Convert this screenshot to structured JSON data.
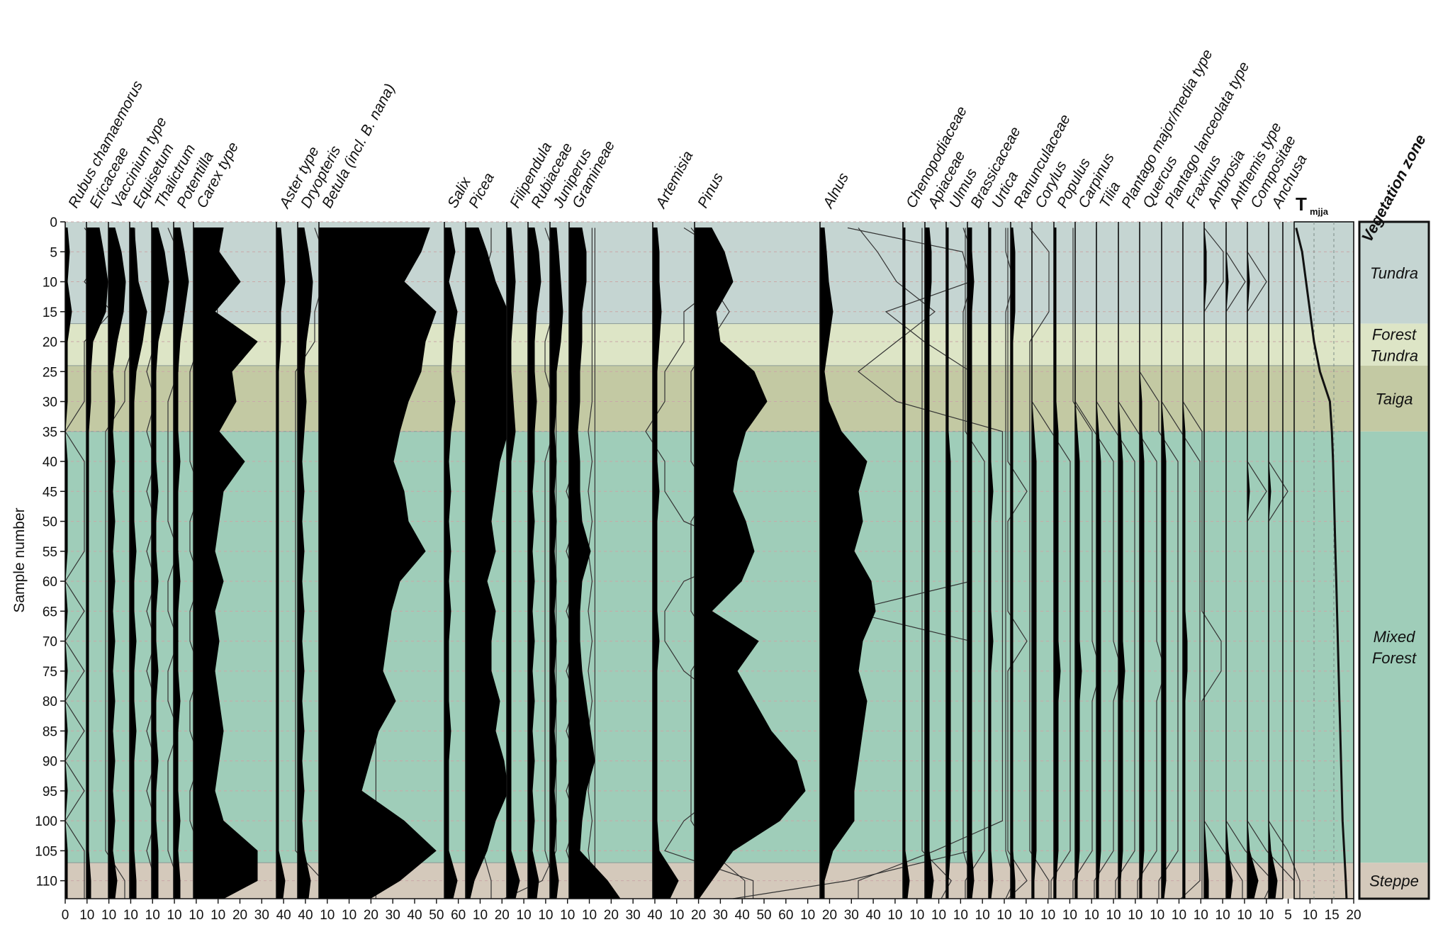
{
  "chart_data": {
    "type": "area",
    "ylabel": "Sample number",
    "ylim": [
      0,
      113
    ],
    "y_ticks": [
      0,
      5,
      10,
      15,
      20,
      25,
      30,
      35,
      40,
      45,
      50,
      55,
      60,
      65,
      70,
      75,
      80,
      85,
      90,
      95,
      100,
      105,
      110
    ],
    "samples": [
      1,
      5,
      10,
      15,
      20,
      25,
      30,
      35,
      40,
      45,
      50,
      55,
      60,
      65,
      70,
      75,
      80,
      85,
      90,
      95,
      100,
      105,
      110,
      113
    ],
    "zones_header": "Vegetation zone",
    "zones": [
      {
        "name": "Tundra",
        "lines": [
          "Tundra"
        ],
        "from": 0,
        "to": 17,
        "color": "#c5d5d2"
      },
      {
        "name": "Forest Tundra",
        "lines": [
          "Forest",
          "Tundra"
        ],
        "from": 17,
        "to": 24,
        "color": "#dde5c6"
      },
      {
        "name": "Taiga",
        "lines": [
          "Taiga"
        ],
        "from": 24,
        "to": 35,
        "color": "#c3c9a3"
      },
      {
        "name": "Mixed Forest",
        "lines": [
          "Mixed",
          "Forest"
        ],
        "from": 35,
        "to": 107,
        "color": "#9fcdb9"
      },
      {
        "name": "Steppe",
        "lines": [
          "Steppe"
        ],
        "from": 107,
        "to": 113,
        "color": "#d4c9bb"
      }
    ],
    "taxa": [
      {
        "name": "Rubus chamaemorus",
        "values": [
          1,
          2,
          1,
          3,
          1,
          1,
          1,
          0,
          1,
          1,
          1,
          1,
          0,
          1,
          0,
          1,
          0,
          1,
          0,
          1,
          0,
          1,
          1,
          1
        ]
      },
      {
        "name": "Ericaceae",
        "values": [
          6,
          8,
          10,
          9,
          3,
          2,
          2,
          1,
          1,
          1,
          1,
          1,
          1,
          1,
          1,
          1,
          1,
          1,
          1,
          1,
          1,
          1,
          2,
          2
        ]
      },
      {
        "name": "Vaccinium type",
        "values": [
          3,
          6,
          8,
          7,
          4,
          2,
          3,
          2,
          3,
          2,
          3,
          2,
          3,
          2,
          3,
          2,
          3,
          2,
          3,
          2,
          3,
          2,
          4,
          3
        ]
      },
      {
        "name": "Equisetum",
        "values": [
          2,
          3,
          4,
          8,
          6,
          3,
          2,
          2,
          2,
          2,
          2,
          3,
          2,
          2,
          3,
          2,
          2,
          3,
          2,
          2,
          2,
          2,
          3,
          3
        ]
      },
      {
        "name": "Thalictrum",
        "values": [
          3,
          6,
          8,
          6,
          3,
          2,
          2,
          2,
          2,
          3,
          2,
          2,
          3,
          2,
          2,
          3,
          2,
          2,
          3,
          2,
          2,
          3,
          3,
          3
        ]
      },
      {
        "name": "Potentilla",
        "values": [
          3,
          5,
          7,
          5,
          3,
          2,
          2,
          2,
          3,
          2,
          2,
          2,
          3,
          2,
          2,
          2,
          3,
          2,
          2,
          2,
          3,
          2,
          3,
          3
        ]
      },
      {
        "name": "Carex type",
        "values": [
          14,
          12,
          22,
          10,
          30,
          18,
          20,
          12,
          24,
          14,
          12,
          10,
          14,
          10,
          12,
          10,
          12,
          14,
          12,
          10,
          14,
          30,
          30,
          14
        ]
      },
      {
        "name": "Aster type",
        "values": [
          2,
          3,
          4,
          2,
          2,
          1,
          1,
          1,
          1,
          1,
          1,
          1,
          1,
          1,
          1,
          1,
          1,
          1,
          1,
          1,
          1,
          1,
          4,
          3
        ]
      },
      {
        "name": "Dryopteris",
        "values": [
          3,
          5,
          7,
          6,
          4,
          3,
          4,
          3,
          2,
          3,
          2,
          3,
          2,
          3,
          2,
          3,
          2,
          3,
          2,
          3,
          2,
          3,
          6,
          5
        ]
      },
      {
        "name": "Betula (incl. B. nana)",
        "values": [
          52,
          48,
          40,
          55,
          50,
          48,
          42,
          38,
          35,
          40,
          42,
          50,
          38,
          34,
          32,
          30,
          36,
          28,
          24,
          20,
          40,
          55,
          38,
          24
        ]
      },
      {
        "name": "Salix",
        "values": [
          3,
          5,
          2,
          6,
          4,
          3,
          5,
          3,
          2,
          3,
          2,
          3,
          2,
          3,
          2,
          2,
          2,
          3,
          2,
          2,
          2,
          2,
          6,
          4
        ]
      },
      {
        "name": "Picea",
        "values": [
          6,
          10,
          14,
          22,
          26,
          32,
          30,
          22,
          16,
          14,
          12,
          14,
          10,
          14,
          12,
          12,
          16,
          14,
          18,
          20,
          14,
          10,
          4,
          2
        ]
      },
      {
        "name": "Filipendula",
        "values": [
          2,
          3,
          4,
          3,
          2,
          2,
          3,
          4,
          2,
          2,
          2,
          2,
          2,
          2,
          2,
          2,
          2,
          2,
          2,
          2,
          2,
          2,
          6,
          4
        ]
      },
      {
        "name": "Rubiaceae",
        "values": [
          3,
          5,
          6,
          4,
          3,
          3,
          4,
          3,
          3,
          2,
          3,
          2,
          3,
          2,
          3,
          2,
          3,
          2,
          3,
          2,
          3,
          2,
          5,
          4
        ]
      },
      {
        "name": "Juniperus",
        "values": [
          3,
          4,
          5,
          6,
          5,
          3,
          3,
          2,
          3,
          2,
          3,
          2,
          3,
          2,
          3,
          2,
          3,
          2,
          3,
          2,
          3,
          2,
          4,
          3
        ]
      },
      {
        "name": "Gramineae",
        "values": [
          6,
          8,
          8,
          6,
          6,
          5,
          5,
          4,
          5,
          5,
          6,
          10,
          6,
          5,
          5,
          6,
          8,
          10,
          12,
          8,
          6,
          5,
          18,
          24
        ]
      },
      {
        "name": "Artemisia",
        "values": [
          2,
          3,
          3,
          4,
          3,
          2,
          2,
          2,
          2,
          3,
          2,
          2,
          2,
          2,
          3,
          2,
          2,
          2,
          2,
          2,
          2,
          3,
          12,
          8
        ]
      },
      {
        "name": "Pinus",
        "values": [
          8,
          14,
          18,
          10,
          12,
          28,
          34,
          24,
          20,
          18,
          24,
          28,
          22,
          8,
          30,
          20,
          28,
          36,
          48,
          52,
          40,
          18,
          8,
          2
        ]
      },
      {
        "name": "Alnus",
        "values": [
          2,
          3,
          4,
          6,
          4,
          2,
          4,
          10,
          22,
          18,
          20,
          16,
          24,
          26,
          20,
          18,
          22,
          20,
          18,
          16,
          16,
          6,
          2,
          2
        ]
      },
      {
        "name": "Chenopodiaceae",
        "values": [
          1,
          1,
          1,
          1,
          1,
          1,
          1,
          1,
          1,
          1,
          1,
          1,
          1,
          1,
          1,
          1,
          1,
          1,
          1,
          1,
          1,
          1,
          3,
          2
        ]
      },
      {
        "name": "Apiaceae",
        "values": [
          2,
          3,
          3,
          2,
          2,
          2,
          2,
          2,
          2,
          2,
          2,
          2,
          2,
          2,
          2,
          2,
          2,
          2,
          2,
          2,
          2,
          2,
          4,
          3
        ]
      },
      {
        "name": "Ulmus",
        "values": [
          1,
          1,
          1,
          1,
          1,
          1,
          1,
          1,
          2,
          2,
          2,
          2,
          2,
          2,
          2,
          2,
          2,
          2,
          2,
          2,
          2,
          2,
          1,
          1
        ]
      },
      {
        "name": "Brassicaceae",
        "values": [
          2,
          2,
          3,
          2,
          2,
          2,
          2,
          2,
          2,
          2,
          2,
          2,
          2,
          2,
          2,
          2,
          2,
          2,
          2,
          2,
          2,
          2,
          3,
          2
        ]
      },
      {
        "name": "Urtica",
        "values": [
          1,
          1,
          1,
          1,
          1,
          1,
          1,
          1,
          1,
          2,
          1,
          1,
          1,
          1,
          2,
          1,
          1,
          1,
          1,
          1,
          1,
          1,
          2,
          1
        ]
      },
      {
        "name": "Ranunculaceae",
        "values": [
          1,
          2,
          2,
          2,
          1,
          1,
          1,
          1,
          1,
          1,
          1,
          1,
          1,
          1,
          1,
          1,
          1,
          1,
          1,
          1,
          1,
          1,
          2,
          2
        ]
      },
      {
        "name": "Corylus",
        "values": [
          0,
          0,
          0,
          0,
          0,
          0,
          0,
          1,
          2,
          2,
          2,
          2,
          2,
          2,
          2,
          2,
          2,
          2,
          2,
          2,
          2,
          2,
          1,
          1
        ]
      },
      {
        "name": "Populus",
        "values": [
          1,
          1,
          1,
          1,
          1,
          1,
          1,
          2,
          2,
          2,
          2,
          2,
          2,
          2,
          2,
          3,
          2,
          2,
          2,
          2,
          2,
          2,
          1,
          1
        ]
      },
      {
        "name": "Carpinus",
        "values": [
          0,
          0,
          0,
          0,
          0,
          0,
          0,
          1,
          2,
          2,
          2,
          2,
          2,
          2,
          2,
          3,
          2,
          2,
          2,
          2,
          2,
          2,
          1,
          1
        ]
      },
      {
        "name": "Tilia",
        "values": [
          0,
          0,
          0,
          0,
          0,
          0,
          0,
          1,
          2,
          2,
          2,
          2,
          2,
          2,
          2,
          2,
          2,
          2,
          2,
          2,
          2,
          2,
          1,
          1
        ]
      },
      {
        "name": "Plantago major/media type",
        "values": [
          0,
          0,
          0,
          0,
          0,
          0,
          0,
          1,
          2,
          2,
          2,
          2,
          2,
          2,
          2,
          3,
          2,
          2,
          2,
          2,
          2,
          2,
          1,
          1
        ]
      },
      {
        "name": "Quercus",
        "values": [
          0,
          0,
          0,
          0,
          0,
          0,
          1,
          1,
          2,
          2,
          2,
          2,
          2,
          2,
          2,
          2,
          2,
          2,
          2,
          2,
          2,
          2,
          1,
          1
        ]
      },
      {
        "name": "Plantago lanceolata type",
        "values": [
          0,
          0,
          0,
          0,
          0,
          0,
          0,
          1,
          2,
          2,
          2,
          2,
          2,
          2,
          2,
          2,
          2,
          2,
          2,
          2,
          2,
          2,
          2,
          1
        ]
      },
      {
        "name": "Fraxinus",
        "values": [
          0,
          0,
          0,
          0,
          0,
          0,
          0,
          1,
          1,
          1,
          1,
          1,
          1,
          1,
          2,
          2,
          1,
          1,
          1,
          1,
          1,
          1,
          1,
          1
        ]
      },
      {
        "name": "Ambrosia",
        "values": [
          0,
          1,
          1,
          0,
          0,
          0,
          0,
          0,
          0,
          0,
          0,
          0,
          0,
          0,
          0,
          0,
          0,
          0,
          0,
          0,
          0,
          1,
          2,
          2
        ]
      },
      {
        "name": "Anthemis type",
        "values": [
          0,
          0,
          1,
          0,
          0,
          0,
          0,
          0,
          0,
          0,
          0,
          0,
          0,
          0,
          0,
          0,
          0,
          0,
          0,
          0,
          0,
          1,
          3,
          2
        ]
      },
      {
        "name": "Compositae",
        "values": [
          0,
          0,
          1,
          0,
          0,
          0,
          0,
          0,
          0,
          1,
          0,
          0,
          0,
          0,
          0,
          0,
          0,
          0,
          0,
          0,
          0,
          1,
          5,
          3
        ]
      },
      {
        "name": "Anchusa",
        "values": [
          0,
          0,
          0,
          0,
          0,
          0,
          0,
          0,
          0,
          1,
          0,
          0,
          0,
          0,
          0,
          0,
          0,
          0,
          0,
          0,
          0,
          1,
          4,
          3
        ]
      }
    ],
    "temperature": {
      "label": "T",
      "subscript": "mjja",
      "ticks": [
        5,
        10,
        15,
        20
      ],
      "values": [
        5.5,
        7,
        8,
        9,
        10,
        11.5,
        14,
        14.5,
        14.8,
        15,
        15.2,
        15.4,
        15.6,
        15.8,
        16,
        16.2,
        16.4,
        16.6,
        16.8,
        17,
        17.2,
        17.6,
        18,
        18.2
      ]
    },
    "x_tick_labels": [
      "0",
      "10",
      "10",
      "10",
      "10",
      "10",
      "10",
      "10",
      "20",
      "30",
      "40",
      "40",
      "10",
      "10",
      "20",
      "30",
      "40",
      "50",
      "60",
      "10",
      "20",
      "10",
      "10",
      "10",
      "10",
      "20",
      "30",
      "40",
      "10",
      "20",
      "30",
      "40",
      "50",
      "60",
      "10",
      "20",
      "30",
      "40",
      "10",
      "10",
      "10",
      "10",
      "10",
      "10",
      "10",
      "10",
      "10",
      "10",
      "10",
      "10",
      "10",
      "10",
      "10",
      "10",
      "10",
      "10",
      "5",
      "10",
      "15",
      "20"
    ]
  }
}
